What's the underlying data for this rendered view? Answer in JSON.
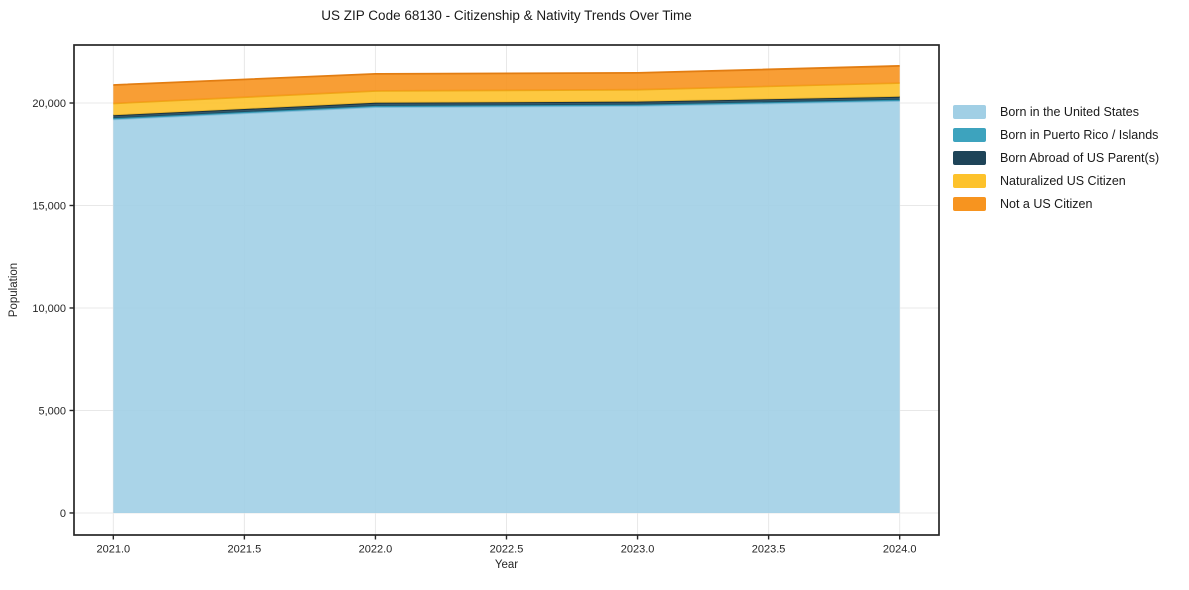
{
  "chart_data": {
    "type": "area",
    "stacked": true,
    "title": "US ZIP Code 68130 - Citizenship & Nativity Trends Over Time",
    "xlabel": "Year",
    "ylabel": "Population",
    "x": [
      2021,
      2022,
      2023,
      2024
    ],
    "series": [
      {
        "name": "Born in the United States",
        "color": "#A1CFE5",
        "edge": "#85BCD9",
        "values": [
          19200,
          19800,
          19860,
          20100
        ]
      },
      {
        "name": "Born in Puerto Rico / Islands",
        "color": "#3DA3BE",
        "edge": "#2E8FA9",
        "values": [
          60,
          60,
          60,
          60
        ]
      },
      {
        "name": "Born Abroad of US Parent(s)",
        "color": "#1E4458",
        "edge": "#16303F",
        "values": [
          140,
          150,
          145,
          145
        ]
      },
      {
        "name": "Naturalized US Citizen",
        "color": "#FDC22B",
        "edge": "#EDA816",
        "values": [
          580,
          580,
          585,
          670
        ]
      },
      {
        "name": "Not a US Citizen",
        "color": "#F7941F",
        "edge": "#E27D12",
        "values": [
          900,
          830,
          820,
          835
        ]
      }
    ],
    "xlim": [
      2020.85,
      2024.15
    ],
    "ylim": [
      -1075,
      22830
    ],
    "x_ticks": [
      2021.0,
      2021.5,
      2022.0,
      2022.5,
      2023.0,
      2023.5,
      2024.0
    ],
    "x_tick_labels": [
      "2021.0",
      "2021.5",
      "2022.0",
      "2022.5",
      "2023.0",
      "2023.5",
      "2024.0"
    ],
    "y_ticks": [
      0,
      5000,
      10000,
      15000,
      20000
    ],
    "y_tick_labels": [
      "0",
      "5,000",
      "10,000",
      "15,000",
      "20,000"
    ],
    "grid": true,
    "grid_color": "#e8e8e8",
    "spine_color": "#262626",
    "tick_label_color": "#262626",
    "legend_position": "right-outside",
    "fill_opacity": 0.9
  }
}
